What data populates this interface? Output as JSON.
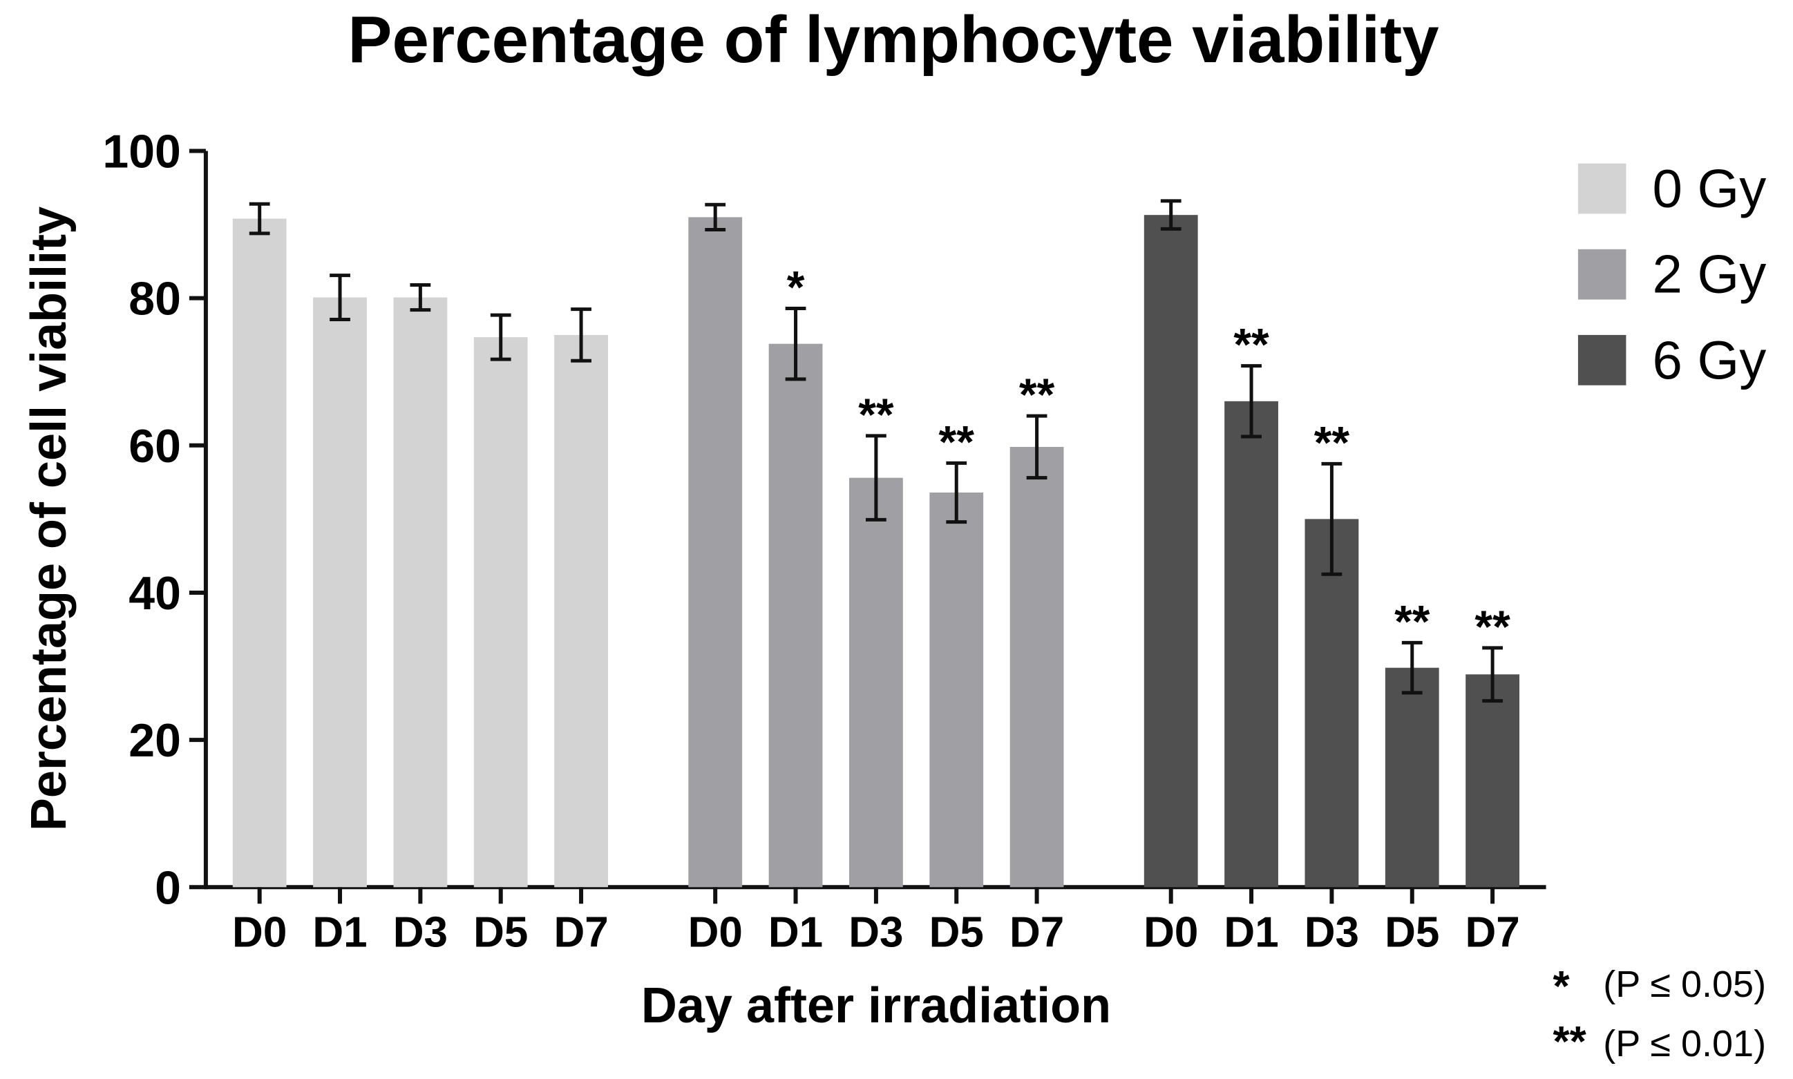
{
  "chart_data": {
    "type": "bar",
    "title": "Percentage of lymphocyte viability",
    "x_label": "Day after irradiation",
    "y_label": "Percentage of cell viability",
    "categories": [
      "D0",
      "D1",
      "D3",
      "D5",
      "D7"
    ],
    "ylim": [
      0,
      100
    ],
    "yticks": [
      0,
      20,
      40,
      60,
      80,
      100
    ],
    "grid": false,
    "series": [
      {
        "name": "0 Gy",
        "color": "#d3d3d3",
        "values": [
          90.8,
          80.1,
          80.1,
          74.7,
          75.0
        ],
        "errors": [
          2.0,
          3.0,
          1.7,
          3.0,
          3.5
        ],
        "significance": [
          null,
          null,
          null,
          null,
          null
        ]
      },
      {
        "name": "2 Gy",
        "color": "#a0a0a4",
        "values": [
          91.0,
          73.8,
          55.6,
          53.6,
          59.8
        ],
        "errors": [
          1.7,
          4.8,
          5.7,
          4.0,
          4.2
        ],
        "significance": [
          null,
          "*",
          "**",
          "**",
          "**"
        ]
      },
      {
        "name": "6 Gy",
        "color": "#505050",
        "values": [
          91.3,
          66.0,
          50.0,
          29.8,
          28.9
        ],
        "errors": [
          1.9,
          4.8,
          7.5,
          3.4,
          3.6
        ],
        "significance": [
          null,
          "**",
          "**",
          "**",
          "**"
        ]
      }
    ],
    "footnotes": [
      {
        "symbol": "*",
        "text": "(P ≤ 0.05)"
      },
      {
        "symbol": "**",
        "text": "(P ≤ 0.01)"
      }
    ]
  }
}
